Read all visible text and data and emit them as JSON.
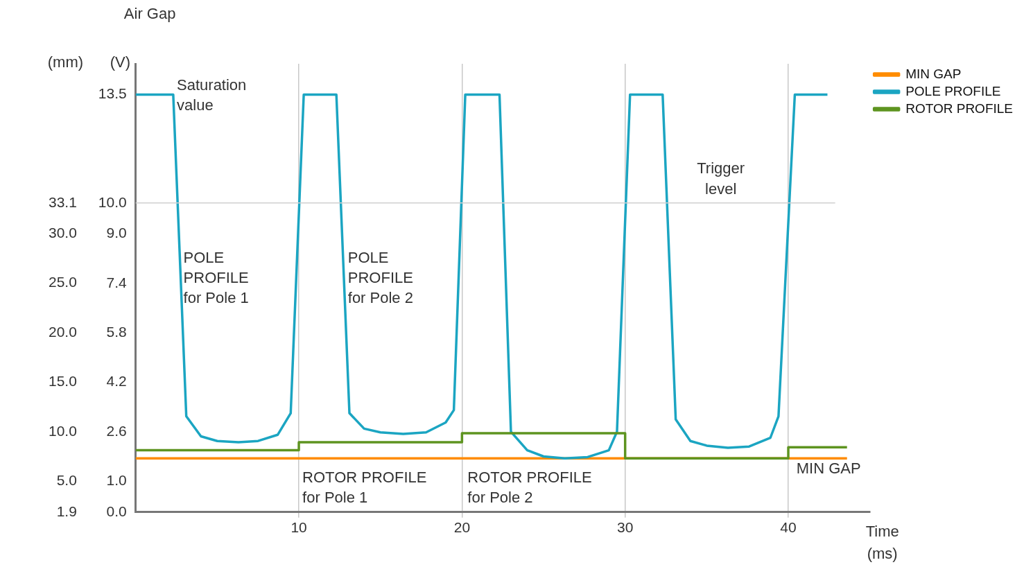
{
  "chart_data": {
    "type": "line",
    "title": "Air Gap",
    "xlabel": "Time (ms)",
    "ylabel": "(V)",
    "y2label": "(mm)",
    "xlim": [
      0,
      45
    ],
    "xticks": [
      10,
      20,
      30,
      40
    ],
    "ylim": [
      0,
      14.5
    ],
    "yticks": [
      {
        "value": 0,
        "label": "0.0"
      },
      {
        "value": 1,
        "label": "1.0"
      },
      2.6,
      4.2,
      5.8,
      7.4,
      {
        "value": 9,
        "label": "9.0"
      },
      {
        "value": 10,
        "label": "10.0"
      },
      13.5
    ],
    "y2lim": [
      1.9,
      47.14
    ],
    "y2ticks": [
      1.9,
      {
        "value": 5,
        "label": "5.0"
      },
      {
        "value": 10,
        "label": "10.0"
      },
      {
        "value": 15,
        "label": "15.0"
      },
      {
        "value": 20,
        "label": "20.0"
      },
      {
        "value": 25,
        "label": "25.0"
      },
      {
        "value": 30,
        "label": "30.0"
      },
      33.1
    ],
    "grid": "x",
    "legend": "top right",
    "series": [
      {
        "name": "MIN GAP",
        "color": "#ff8c00",
        "x": [
          0,
          43.6
        ],
        "values": [
          1.74,
          1.74
        ]
      },
      {
        "name": "POLE PROFILE",
        "color": "#1ba5c2",
        "x": [
          0,
          2.3,
          3.1,
          4,
          5,
          6.3,
          7.5,
          8.7,
          9.5,
          10.3,
          12.3,
          13.1,
          14,
          15,
          16.4,
          17.8,
          19,
          19.5,
          20.2,
          22.3,
          23,
          24,
          25,
          26.3,
          27.7,
          29,
          29.5,
          30.3,
          32.3,
          33.1,
          34,
          35,
          36.3,
          37.6,
          38.9,
          39.4,
          40.4,
          42.4
        ],
        "values": [
          13.5,
          13.5,
          3.1,
          2.45,
          2.3,
          2.26,
          2.3,
          2.5,
          3.2,
          13.5,
          13.5,
          3.2,
          2.7,
          2.58,
          2.53,
          2.58,
          2.9,
          3.3,
          13.5,
          13.5,
          2.6,
          2.0,
          1.8,
          1.74,
          1.78,
          2.0,
          2.6,
          13.5,
          13.5,
          3.0,
          2.3,
          2.15,
          2.08,
          2.12,
          2.4,
          3.1,
          13.5,
          13.5
        ]
      },
      {
        "name": "ROTOR PROFILE",
        "type": "step",
        "color": "#5e9420",
        "x": [
          0,
          10,
          20,
          30,
          40,
          43.6
        ],
        "values": [
          2.0,
          2.26,
          2.55,
          1.74,
          2.1,
          2.1
        ]
      }
    ],
    "ref_lines": [
      {
        "axis": "y",
        "value": 10,
        "label": "Trigger level",
        "color": "#d0d0d0"
      }
    ],
    "annotations": [
      "Saturation value",
      "POLE PROFILE for Pole 1",
      "POLE PROFILE for Pole 2",
      "ROTOR PROFILE for Pole 1",
      "ROTOR PROFILE for Pole 2",
      "MIN GAP"
    ]
  }
}
